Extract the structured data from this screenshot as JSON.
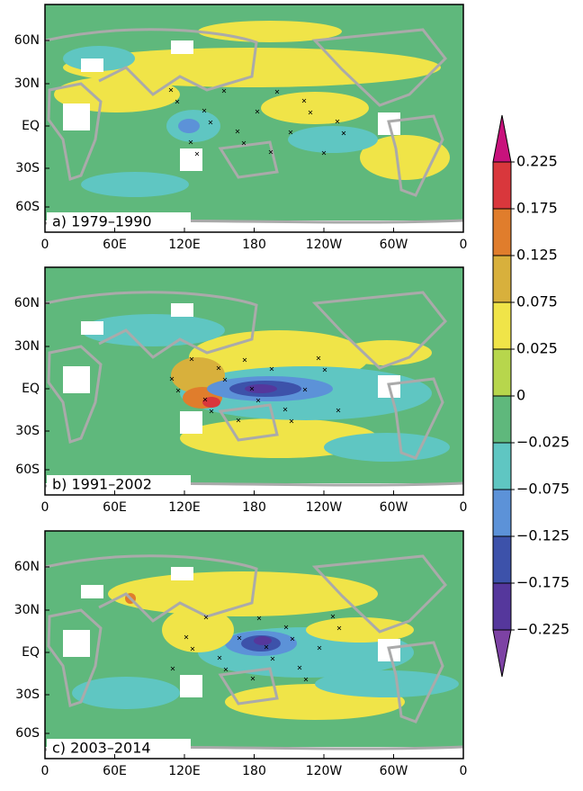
{
  "panels": [
    {
      "label": "a) 1979–1990"
    },
    {
      "label": "b) 1991–2002"
    },
    {
      "label": "c) 2003–2014"
    }
  ],
  "lon_ticks": [
    "0",
    "60E",
    "120E",
    "180",
    "120W",
    "60W",
    "0"
  ],
  "lat_ticks": [
    "60N",
    "30N",
    "EQ",
    "30S",
    "60S"
  ],
  "colorbar": {
    "levels": [
      0.225,
      0.175,
      0.125,
      0.075,
      0.025,
      0,
      {
        "value": -0.025,
        "label": "−0.025"
      },
      {
        "value": -0.075,
        "label": "−0.075"
      },
      {
        "value": -0.125,
        "label": "−0.125"
      },
      {
        "value": -0.175,
        "label": "−0.175"
      },
      {
        "value": -0.225,
        "label": "−0.225"
      }
    ],
    "colors": [
      "#c8127c",
      "#d9373c",
      "#e07d2c",
      "#d8b03c",
      "#f0e448",
      "#b7d64c",
      "#5fb87c",
      "#5fc6c2",
      "#5c92d8",
      "#3d52aa",
      "#55379c",
      "#7d42a4"
    ]
  }
}
